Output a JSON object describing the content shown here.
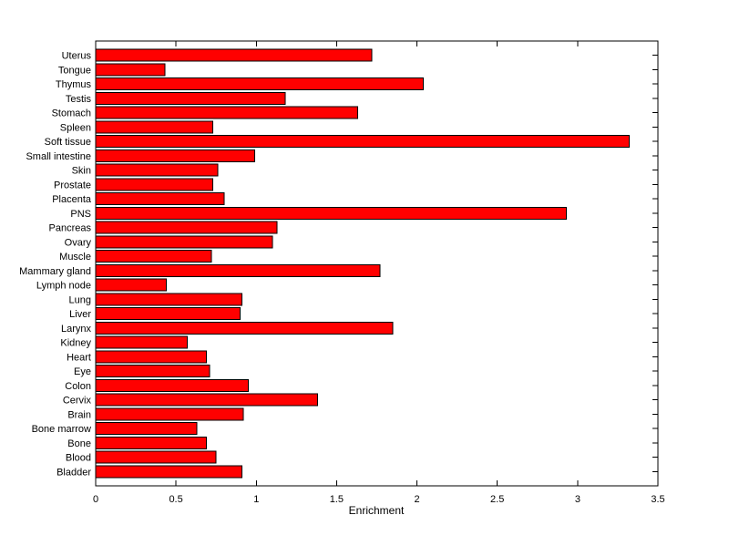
{
  "chart_data": {
    "type": "bar",
    "orientation": "horizontal",
    "title": "",
    "xlabel": "Enrichment",
    "ylabel": "",
    "xlim": [
      0,
      3.5
    ],
    "xticks": [
      0,
      0.5,
      1,
      1.5,
      2,
      2.5,
      3,
      3.5
    ],
    "xtick_labels": [
      "0",
      "0.5",
      "1",
      "1.5",
      "2",
      "2.5",
      "3",
      "3.5"
    ],
    "categories": [
      "Uterus",
      "Tongue",
      "Thymus",
      "Testis",
      "Stomach",
      "Spleen",
      "Soft tissue",
      "Small intestine",
      "Skin",
      "Prostate",
      "Placenta",
      "PNS",
      "Pancreas",
      "Ovary",
      "Muscle",
      "Mammary gland",
      "Lymph node",
      "Lung",
      "Liver",
      "Larynx",
      "Kidney",
      "Heart",
      "Eye",
      "Colon",
      "Cervix",
      "Brain",
      "Bone marrow",
      "Bone",
      "Blood",
      "Bladder"
    ],
    "values": [
      1.72,
      0.43,
      2.04,
      1.18,
      1.63,
      0.73,
      3.32,
      0.99,
      0.76,
      0.73,
      0.8,
      2.93,
      1.13,
      1.1,
      0.72,
      1.77,
      0.44,
      0.91,
      0.9,
      1.85,
      0.57,
      0.69,
      0.71,
      0.95,
      1.38,
      0.92,
      0.63,
      0.69,
      0.75,
      0.91
    ],
    "bar_color": "#ff0000",
    "bar_edge_color": "#000000",
    "axis_color": "#000000",
    "background_color": "#ffffff",
    "grid": false,
    "legend": null
  }
}
